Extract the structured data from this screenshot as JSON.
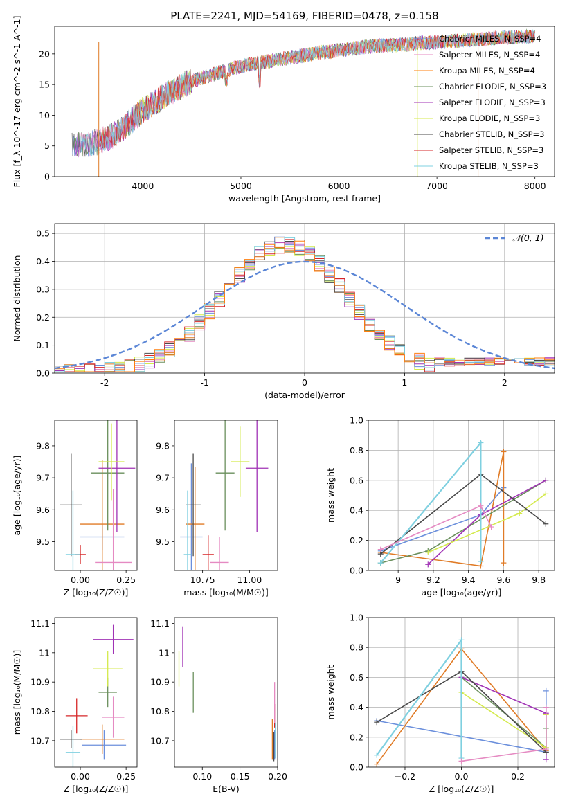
{
  "figure_title": "PLATE=2241, MJD=54169, FIBERID=0478, z=0.158",
  "colors": [
    "#6b8fdc",
    "#e07b26",
    "#ff7f0e",
    "#6a8f5c",
    "#a032b5",
    "#d4ea4c",
    "#4a4a4a",
    "#d62728",
    "#7fd0e0",
    "#e58ac2"
  ],
  "series_names": [
    "Chabrier MILES, N$_{SSP}$=4",
    "Salpeter MILES, N$_{SSP}$=4",
    "Kroupa MILES, N$_{SSP}$=4",
    "Chabrier ELODIE, N$_{SSP}$=3",
    "Salpeter ELODIE, N$_{SSP}$=3",
    "Kroupa ELODIE, N$_{SSP}$=3",
    "Chabrier STELIB, N$_{SSP}$=3",
    "Salpeter STELIB, N$_{SSP}$=3",
    "Kroupa STELIB, N$_{SSP}$=3"
  ],
  "chart_data": [
    {
      "type": "line",
      "id": "spectrum",
      "xlabel": "wavelength [Angstrom, rest frame]",
      "ylabel": "Flux [f_λ 10^-17 erg cm^-2 s^-1 A^-1]",
      "xlim": [
        3100,
        8200
      ],
      "ylim": [
        0,
        24.5
      ],
      "xticks": [
        4000,
        5000,
        6000,
        7000,
        8000
      ],
      "yticks": [
        0,
        5,
        10,
        15,
        20
      ],
      "x": [
        3280,
        3400,
        3550,
        3700,
        3850,
        4000,
        4150,
        4300,
        4450,
        4600,
        4750,
        4900,
        5050,
        5200,
        5350,
        5500,
        5650,
        5800,
        5950,
        6100,
        6250,
        6400,
        6550,
        6700,
        6850,
        7000,
        7150,
        7300,
        7450,
        7600,
        7750,
        7900,
        8000
      ],
      "y": [
        5.2,
        5.3,
        5.6,
        6.8,
        8.6,
        10.9,
        12.4,
        13.9,
        15.2,
        16.1,
        16.8,
        17.6,
        18.1,
        18.6,
        19.0,
        19.4,
        19.8,
        20.2,
        20.5,
        20.8,
        21.1,
        21.3,
        21.4,
        21.6,
        21.8,
        21.9,
        22.1,
        22.3,
        22.4,
        22.6,
        22.7,
        22.8,
        22.9
      ],
      "legend": [
        "Chabrier MILES, N$_{SSP}$=4",
        "Salpeter MILES, N$_{SSP}$=4",
        "Kroupa MILES, N$_{SSP}$=4",
        "Chabrier ELODIE, N$_{SSP}$=3",
        "Salpeter ELODIE, N$_{SSP}$=3",
        "Kroupa ELODIE, N$_{SSP}$=3",
        "Chabrier STELIB, N$_{SSP}$=3",
        "Salpeter STELIB, N$_{SSP}$=3",
        "Kroupa STELIB, N$_{SSP}$=3"
      ],
      "legend_position": "right"
    },
    {
      "type": "area",
      "id": "residuals",
      "xlabel": "(data-model)/error",
      "ylabel": "Normed distribution",
      "xlim": [
        -2.5,
        2.5
      ],
      "ylim": [
        0,
        0.535
      ],
      "xticks": [
        -2,
        -1,
        0,
        1,
        2
      ],
      "yticks": [
        0.0,
        0.1,
        0.2,
        0.3,
        0.4,
        0.5
      ],
      "grid": true,
      "legend": [
        "$\\mathcal{N}(0,1)$"
      ],
      "legend_position": "top-right",
      "bin_width": 0.1,
      "histogram_center": -0.2,
      "histogram_peak": 0.46
    },
    {
      "type": "scatter",
      "id": "age-vs-Z",
      "xlabel": "Z [log₁₀(Z/Z☉)]",
      "ylabel": "age  [log₁₀(age/yr)]",
      "xlim": [
        -0.14,
        0.31
      ],
      "ylim": [
        9.41,
        9.88
      ],
      "xticks": [
        0.0,
        0.25
      ],
      "xticklabels": [
        "0.00",
        "0.25"
      ],
      "yticks": [
        9.5,
        9.6,
        9.7,
        9.8
      ],
      "points": [
        {
          "x": 0.12,
          "y": 9.515,
          "xerr": 0.12,
          "yerr": 0.04,
          "c": 0
        },
        {
          "x": 0.12,
          "y": 9.555,
          "xerr": 0.12,
          "yerr": 0.2,
          "c": 1
        },
        {
          "x": 0.15,
          "y": 9.715,
          "xerr": 0.09,
          "yerr": 0.18,
          "c": 3
        },
        {
          "x": 0.2,
          "y": 9.73,
          "xerr": 0.1,
          "yerr": 0.2,
          "c": 4
        },
        {
          "x": 0.17,
          "y": 9.75,
          "xerr": 0.07,
          "yerr": 0.12,
          "c": 5
        },
        {
          "x": -0.05,
          "y": 9.615,
          "xerr": 0.06,
          "yerr": 0.16,
          "c": 6
        },
        {
          "x": 0.0,
          "y": 9.46,
          "xerr": 0.03,
          "yerr": 0.03,
          "c": 7
        },
        {
          "x": -0.04,
          "y": 9.46,
          "xerr": 0.04,
          "yerr": 0.2,
          "c": 8
        },
        {
          "x": 0.18,
          "y": 9.435,
          "xerr": 0.1,
          "yerr": 0.23,
          "c": 9
        }
      ]
    },
    {
      "type": "scatter",
      "id": "age-vs-mass",
      "xlabel": "mass [log₁₀(M/M☉)]",
      "ylabel": "",
      "xlim": [
        10.6,
        11.15
      ],
      "ylim": [
        9.41,
        9.88
      ],
      "xticks": [
        10.75,
        11.0
      ],
      "xticklabels": [
        "10.75",
        "11.00"
      ],
      "yticks": [
        9.5,
        9.6,
        9.7,
        9.8
      ],
      "points": [
        {
          "x": 10.69,
          "y": 9.515,
          "xerr": 0.06,
          "yerr": 0.23,
          "c": 0
        },
        {
          "x": 10.71,
          "y": 9.555,
          "xerr": 0.05,
          "yerr": 0.18,
          "c": 1
        },
        {
          "x": 10.87,
          "y": 9.715,
          "xerr": 0.05,
          "yerr": 0.18,
          "c": 3
        },
        {
          "x": 11.04,
          "y": 9.73,
          "xerr": 0.06,
          "yerr": 0.2,
          "c": 4
        },
        {
          "x": 10.95,
          "y": 9.75,
          "xerr": 0.05,
          "yerr": 0.11,
          "c": 5
        },
        {
          "x": 10.7,
          "y": 9.615,
          "xerr": 0.04,
          "yerr": 0.16,
          "c": 6
        },
        {
          "x": 10.78,
          "y": 9.46,
          "xerr": 0.03,
          "yerr": 0.06,
          "c": 7
        },
        {
          "x": 10.67,
          "y": 9.46,
          "xerr": 0.02,
          "yerr": 0.2,
          "c": 8
        },
        {
          "x": 10.84,
          "y": 9.435,
          "xerr": 0.05,
          "yerr": 0.08,
          "c": 9
        }
      ]
    },
    {
      "type": "line",
      "id": "massweight-vs-age",
      "xlabel": "age  [log₁₀(age/yr)]",
      "ylabel": "mass weight",
      "xlim": [
        8.83,
        9.89
      ],
      "ylim": [
        0,
        1.0
      ],
      "xticks": [
        9.0,
        9.2,
        9.4,
        9.6,
        9.8
      ],
      "yticks": [
        0.0,
        0.2,
        0.4,
        0.6,
        0.8,
        1.0
      ],
      "grid": true,
      "series": [
        {
          "c": 0,
          "x": [
            8.9,
            9.47,
            9.6
          ],
          "y": [
            0.13,
            0.37,
            0.55
          ]
        },
        {
          "c": 1,
          "x": [
            8.9,
            9.47,
            9.6,
            9.6
          ],
          "y": [
            0.12,
            0.03,
            0.79,
            0.05
          ]
        },
        {
          "c": 3,
          "x": [
            8.9,
            9.17,
            9.84
          ],
          "y": [
            0.05,
            0.13,
            0.6
          ]
        },
        {
          "c": 4,
          "x": [
            9.17,
            9.47,
            9.84
          ],
          "y": [
            0.04,
            0.37,
            0.6
          ]
        },
        {
          "c": 5,
          "x": [
            9.17,
            9.69,
            9.84
          ],
          "y": [
            0.12,
            0.38,
            0.51
          ]
        },
        {
          "c": 6,
          "x": [
            8.9,
            9.47,
            9.84
          ],
          "y": [
            0.11,
            0.64,
            0.31
          ]
        },
        {
          "c": 8,
          "x": [
            8.9,
            9.47,
            9.47
          ],
          "y": [
            0.05,
            0.85,
            0.06
          ]
        },
        {
          "c": 9,
          "x": [
            8.9,
            9.47,
            9.53
          ],
          "y": [
            0.14,
            0.43,
            0.29
          ]
        }
      ]
    },
    {
      "type": "scatter",
      "id": "mass-vs-Z",
      "xlabel": "Z [log₁₀(Z/Z☉)]",
      "ylabel": "mass [log₁₀(M/M☉)]",
      "xlim": [
        -0.14,
        0.31
      ],
      "ylim": [
        10.61,
        11.12
      ],
      "xticks": [
        0.0,
        0.25
      ],
      "xticklabels": [
        "0.00",
        "0.25"
      ],
      "yticks": [
        10.7,
        10.8,
        10.9,
        11.0,
        11.1
      ],
      "points": [
        {
          "x": 0.13,
          "y": 10.685,
          "xerr": 0.12,
          "yerr": 0.05,
          "c": 0
        },
        {
          "x": 0.12,
          "y": 10.705,
          "xerr": 0.12,
          "yerr": 0.05,
          "c": 1
        },
        {
          "x": 0.15,
          "y": 10.865,
          "xerr": 0.05,
          "yerr": 0.05,
          "c": 3
        },
        {
          "x": 0.18,
          "y": 11.045,
          "xerr": 0.11,
          "yerr": 0.05,
          "c": 4
        },
        {
          "x": 0.15,
          "y": 10.945,
          "xerr": 0.08,
          "yerr": 0.06,
          "c": 5
        },
        {
          "x": -0.05,
          "y": 10.705,
          "xerr": 0.06,
          "yerr": 0.03,
          "c": 6
        },
        {
          "x": -0.02,
          "y": 10.785,
          "xerr": 0.06,
          "yerr": 0.06,
          "c": 7
        },
        {
          "x": -0.04,
          "y": 10.66,
          "xerr": 0.04,
          "yerr": 0.09,
          "c": 8
        },
        {
          "x": 0.18,
          "y": 10.78,
          "xerr": 0.06,
          "yerr": 0.07,
          "c": 9
        }
      ]
    },
    {
      "type": "scatter",
      "id": "mass-vs-EBV",
      "xlabel": "E(B-V)",
      "ylabel": "",
      "xlim": [
        0.063,
        0.2
      ],
      "ylim": [
        10.61,
        11.12
      ],
      "xticks": [
        0.1,
        0.15,
        0.2
      ],
      "xticklabels": [
        "0.10",
        "0.15",
        "0.20"
      ],
      "yticks": [
        10.7,
        10.8,
        10.9,
        11.0,
        11.1
      ],
      "points": [
        {
          "x": 0.196,
          "y": 10.685,
          "yerr": 0.05,
          "c": 0
        },
        {
          "x": 0.193,
          "y": 10.705,
          "yerr": 0.07,
          "c": 1
        },
        {
          "x": 0.088,
          "y": 10.865,
          "yerr": 0.07,
          "c": 3
        },
        {
          "x": 0.074,
          "y": 11.02,
          "yerr": 0.07,
          "c": 4
        },
        {
          "x": 0.069,
          "y": 10.945,
          "yerr": 0.06,
          "c": 5
        },
        {
          "x": 0.195,
          "y": 10.68,
          "yerr": 0.05,
          "c": 6
        },
        {
          "x": 0.196,
          "y": 10.785,
          "yerr": 0.04,
          "c": 7
        },
        {
          "x": 0.197,
          "y": 10.7,
          "yerr": 0.06,
          "c": 8
        },
        {
          "x": 0.196,
          "y": 10.83,
          "yerr": 0.07,
          "c": 9
        }
      ]
    },
    {
      "type": "line",
      "id": "massweight-vs-Z",
      "xlabel": "Z [log₁₀(Z/Z☉)]",
      "ylabel": "mass weight",
      "xlim": [
        -0.33,
        0.33
      ],
      "ylim": [
        0,
        1.0
      ],
      "xticks": [
        -0.2,
        0.0,
        0.2
      ],
      "xticklabels": [
        "−0.2",
        "0.0",
        "0.2"
      ],
      "yticks": [
        0.0,
        0.2,
        0.4,
        0.6,
        0.8,
        1.0
      ],
      "grid": true,
      "series": [
        {
          "c": 0,
          "x": [
            -0.3,
            0.3,
            0.3
          ],
          "y": [
            0.31,
            0.1,
            0.51
          ]
        },
        {
          "c": 1,
          "x": [
            -0.3,
            0.0,
            0.3
          ],
          "y": [
            0.02,
            0.79,
            0.11
          ]
        },
        {
          "c": 3,
          "x": [
            0.0,
            0.3,
            0.3
          ],
          "y": [
            0.6,
            0.13,
            0.26
          ]
        },
        {
          "c": 4,
          "x": [
            0.0,
            0.3,
            0.3
          ],
          "y": [
            0.6,
            0.36,
            0.05
          ]
        },
        {
          "c": 5,
          "x": [
            0.0,
            0.3,
            0.3
          ],
          "y": [
            0.5,
            0.13,
            0.35
          ]
        },
        {
          "c": 6,
          "x": [
            -0.3,
            0.0,
            0.3
          ],
          "y": [
            0.3,
            0.64,
            0.1
          ]
        },
        {
          "c": 8,
          "x": [
            -0.3,
            0.0,
            0.0
          ],
          "y": [
            0.08,
            0.85,
            0.06
          ]
        },
        {
          "c": 9,
          "x": [
            0.0,
            0.3,
            0.3
          ],
          "y": [
            0.04,
            0.12,
            0.4
          ]
        }
      ]
    }
  ]
}
